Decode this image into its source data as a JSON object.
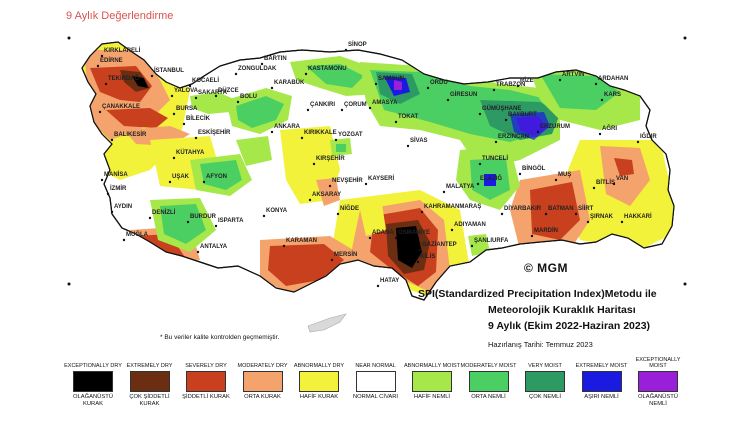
{
  "page": {
    "title": "9 Aylık Değerlendirme"
  },
  "map": {
    "title_lines": [
      "SPI(Standardized Precipitation Index)Metodu ile",
      "Meteorolojik Kuraklık Haritası",
      "9 Aylık (Ekim 2022-Haziran 2023)"
    ],
    "prepared_date": "Hazırlanış Tarihi: Temmuz 2023",
    "logo_text": "© MGM",
    "note": "* Bu veriler kalite kontrolden geçmemiştir.",
    "cities": [
      "KIRKLARELİ",
      "EDİRNE",
      "TEKİRDAĞ",
      "İSTANBUL",
      "YALOVA",
      "KOCAELİ",
      "SAKARYA",
      "BARTIN",
      "ZONGULDAK",
      "KARABÜK",
      "DÜZCE",
      "BOLU",
      "SİNOP",
      "KASTAMONU",
      "SAMSUN",
      "ORDU",
      "TRABZON",
      "RİZE",
      "ARTVİN",
      "ARDAHAN",
      "KARS",
      "IĞDIR",
      "AĞRI",
      "ERZURUM",
      "BAYBURT",
      "GÜMÜŞHANE",
      "GİRESUN",
      "ÇANAKKALE",
      "BALIKESİR",
      "BURSA",
      "BİLECİK",
      "ESKİŞEHİR",
      "ANKARA",
      "ÇANKIRI",
      "ÇORUM",
      "AMASYA",
      "TOKAT",
      "KIRIKKALE",
      "YOZGAT",
      "SİVAS",
      "ERZİNCAN",
      "TUNCELİ",
      "BİNGÖL",
      "MUŞ",
      "BİTLİS",
      "VAN",
      "HAKKARİ",
      "KÜTAHYA",
      "UŞAK",
      "MANİSA",
      "İZMİR",
      "AFYON",
      "KIRŞEHİR",
      "NEVŞEHİR",
      "KAYSERİ",
      "MALATYA",
      "ELAZIĞ",
      "DİYARBAKIR",
      "BATMAN",
      "SİİRT",
      "ŞIRNAK",
      "MARDİN",
      "AYDIN",
      "DENİZLİ",
      "BURDUR",
      "ISPARTA",
      "KONYA",
      "AKSARAY",
      "NİĞDE",
      "KAHRAMANMARAŞ",
      "ADIYAMAN",
      "ŞANLIURFA",
      "MUĞLA",
      "ANTALYA",
      "KARAMAN",
      "MERSİN",
      "ADANA",
      "OSMANİYE",
      "GAZİANTEP",
      "KİLİS",
      "HATAY"
    ]
  },
  "legend": [
    {
      "top": "EXCEPTIONALLY DRY",
      "bottom": "OLAĞANÜSTÜ KURAK",
      "color": "#000000"
    },
    {
      "top": "EXTREMELY DRY",
      "bottom": "ÇOK ŞİDDETLİ KURAK",
      "color": "#6b2e12"
    },
    {
      "top": "SEVERELY DRY",
      "bottom": "ŞİDDETLİ KURAK",
      "color": "#c8401e"
    },
    {
      "top": "MODERATELY DRY",
      "bottom": "ORTA KURAK",
      "color": "#f5a36c"
    },
    {
      "top": "ABNORMALLY DRY",
      "bottom": "HAFİF KURAK",
      "color": "#f2f23a"
    },
    {
      "top": "NEAR NORMAL",
      "bottom": "NORMAL CİVARI",
      "color": "#ffffff"
    },
    {
      "top": "ABNORMALLY MOIST",
      "bottom": "HAFİF NEMLİ",
      "color": "#a6e84a"
    },
    {
      "top": "MODERATELY MOIST",
      "bottom": "ORTA NEMLİ",
      "color": "#4ccf62"
    },
    {
      "top": "VERY MOIST",
      "bottom": "ÇOK NEMLİ",
      "color": "#2e9a63"
    },
    {
      "top": "EXTREMELY MOIST",
      "bottom": "AŞIRI NEMLİ",
      "color": "#1a1ae0"
    },
    {
      "top": "EXCEPTIONALLY MOIST",
      "bottom": "OLAĞANÜSTÜ NEMLİ",
      "color": "#9a1fd8"
    }
  ]
}
